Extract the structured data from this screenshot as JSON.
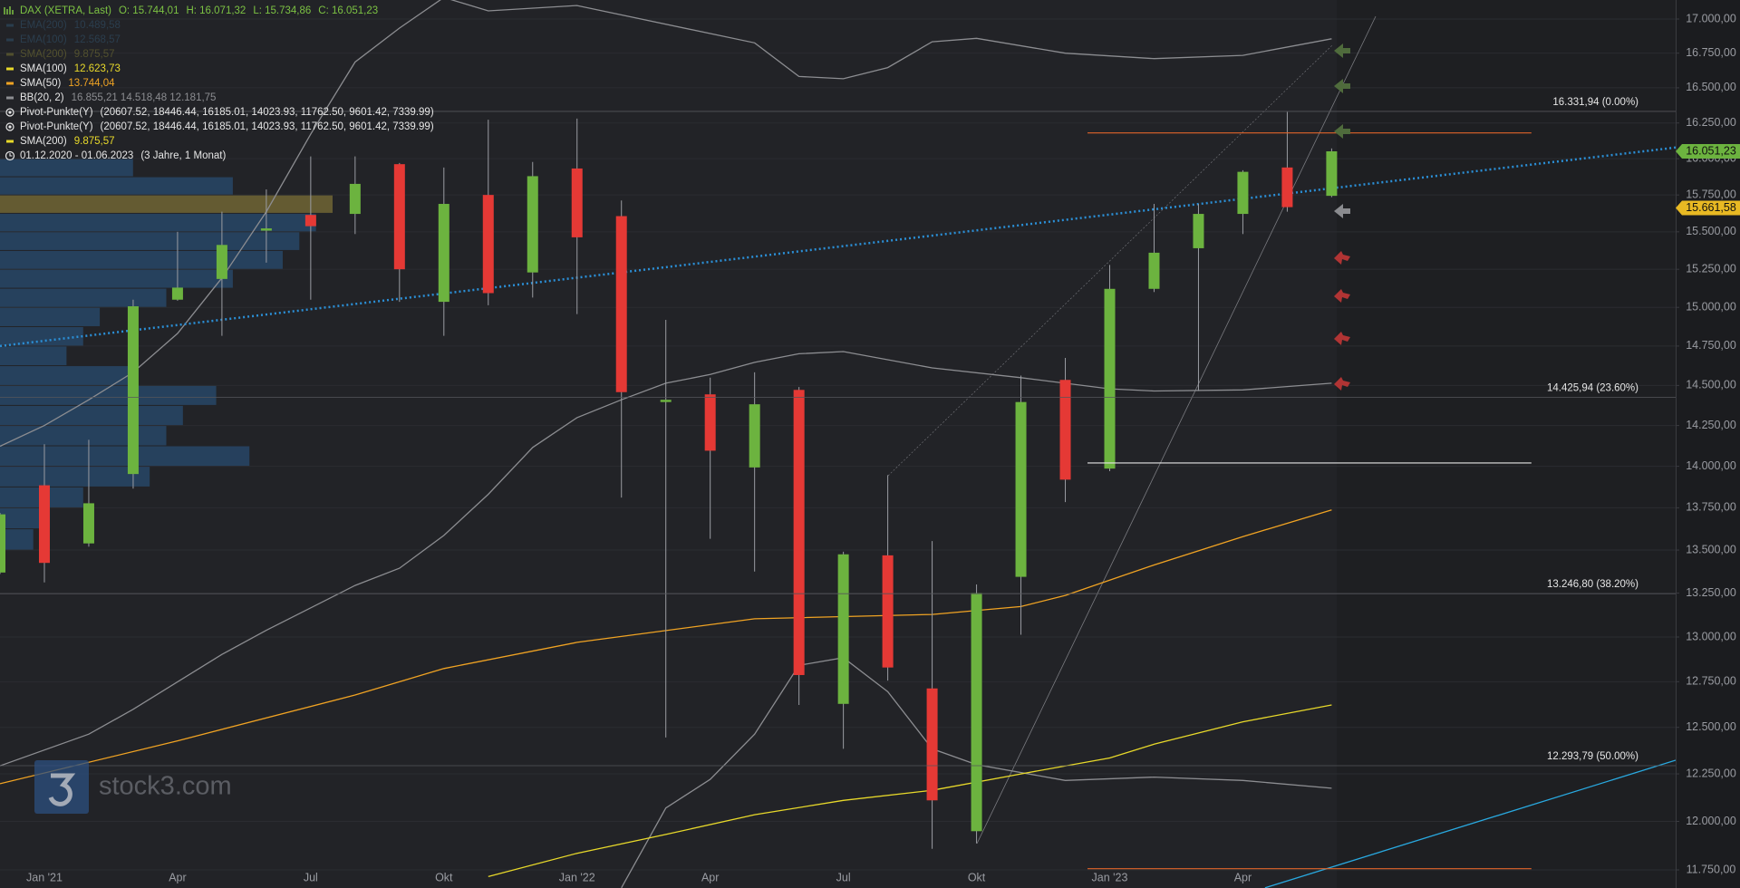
{
  "header": {
    "symbol": "DAX (XETRA, Last)",
    "ohlc": [
      "O: 15.744,01",
      "H: 16.071,32",
      "L: 15.734,86",
      "C: 16.051,23"
    ],
    "color": "#7cc243"
  },
  "legend": [
    {
      "name": "EMA(200)",
      "value": "10.489,58",
      "color": "#3a6f94",
      "icon": "line",
      "dim": true
    },
    {
      "name": "EMA(100)",
      "value": "12.568,57",
      "color": "#3a6f94",
      "icon": "line",
      "dim": true
    },
    {
      "name": "SMA(200)",
      "value": "9.875,57",
      "color": "#a8a23a",
      "icon": "line",
      "dim": true
    },
    {
      "name": "SMA(100)",
      "value": "12.623,73",
      "color": "#e8d92a",
      "icon": "line",
      "dim": false
    },
    {
      "name": "SMA(50)",
      "value": "13.744,04",
      "color": "#f0a323",
      "icon": "line",
      "dim": false
    },
    {
      "name": "BB(20, 2)",
      "value": "16.855,21   14.518,48   12.181,75",
      "color": "#8c8d91",
      "icon": "line",
      "dim": false
    },
    {
      "name": "Pivot-Punkte(Y)",
      "value": "(20607.52,  18446.44,  16185.01,  14023.93,  11762.50,  9601.42,  7339.99)",
      "color": "#e6e6e6",
      "icon": "circle",
      "dim": false
    },
    {
      "name": "Pivot-Punkte(Y)",
      "value": "(20607.52,  18446.44,  16185.01,  14023.93,  11762.50,  9601.42,  7339.99)",
      "color": "#e6e6e6",
      "icon": "circle",
      "dim": false
    },
    {
      "name": "SMA(200)",
      "value": "9.875,57",
      "color": "#e8d92a",
      "icon": "line",
      "dim": false
    },
    {
      "name": "01.12.2020 - 01.06.2023",
      "value": "(3 Jahre, 1 Monat)",
      "color": "#e6e6e6",
      "icon": "clock",
      "dim": false
    }
  ],
  "watermark": "stock3.com",
  "chart_data": {
    "type": "candlestick",
    "categories": [
      null,
      "Jan '21",
      null,
      null,
      "Apr",
      null,
      null,
      "Jul",
      null,
      null,
      "Okt",
      null,
      null,
      "Jan '22",
      null,
      null,
      "Apr",
      null,
      null,
      "Jul",
      null,
      null,
      "Okt",
      null,
      null,
      "Jan '23",
      null,
      null,
      "Apr",
      null,
      null
    ],
    "open": [
      13369,
      13885,
      13539,
      13953,
      15050,
      15186,
      15508,
      15614,
      15621,
      15962,
      15036,
      15750,
      15229,
      15932,
      15606,
      14396,
      14444,
      13993,
      14472,
      12628,
      13469,
      12713,
      11949,
      13344,
      14535,
      13986,
      15121,
      15390,
      15621,
      15939,
      15744.01
    ],
    "high": [
      13720,
      14135,
      14162,
      15050,
      15500,
      15636,
      15788,
      16016,
      16016,
      15970,
      15939,
      16273,
      15977,
      16281,
      15712,
      14919,
      14549,
      14583,
      14490,
      13490,
      13946,
      13553,
      13300,
      14562,
      14674,
      15279,
      15689,
      15689,
      15920,
      16328,
      16071.32
    ],
    "low": [
      13360,
      13312,
      13520,
      13865,
      15043,
      14816,
      15294,
      15050,
      15485,
      15036,
      14816,
      15014,
      15064,
      14956,
      13811,
      12445,
      13566,
      13375,
      12622,
      12384,
      12756,
      11858,
      11886,
      13013,
      13784,
      13970,
      15100,
      14465,
      15485,
      15636,
      15734.86
    ],
    "close": [
      13711,
      13425,
      13777,
      15007,
      15129,
      15412,
      15523,
      15538,
      15826,
      15250,
      15689,
      15093,
      15879,
      15463,
      14458,
      14410,
      14095,
      14382,
      12787,
      13475,
      12829,
      12110,
      13250,
      14396,
      13919,
      15121,
      15360,
      15621,
      15909,
      15667,
      16051.23
    ],
    "up_color": "#6cb33f",
    "down_color": "#e53935",
    "xlim": [
      0,
      37.75
    ],
    "ylim": [
      11750,
      17000
    ],
    "log_scale": true,
    "grid": true,
    "yticks": [
      {
        "value": 17000,
        "label": "17.000,00"
      },
      {
        "value": 16750,
        "label": "16.750,00"
      },
      {
        "value": 16500,
        "label": "16.500,00"
      },
      {
        "value": 16250,
        "label": "16.250,00"
      },
      {
        "value": 16000,
        "label": "16.000,00"
      },
      {
        "value": 15750,
        "label": "15.750,00"
      },
      {
        "value": 15500,
        "label": "15.500,00"
      },
      {
        "value": 15250,
        "label": "15.250,00"
      },
      {
        "value": 15000,
        "label": "15.000,00"
      },
      {
        "value": 14750,
        "label": "14.750,00"
      },
      {
        "value": 14500,
        "label": "14.500,00"
      },
      {
        "value": 14250,
        "label": "14.250,00"
      },
      {
        "value": 14000,
        "label": "14.000,00"
      },
      {
        "value": 13750,
        "label": "13.750,00"
      },
      {
        "value": 13500,
        "label": "13.500,00"
      },
      {
        "value": 13250,
        "label": "13.250,00"
      },
      {
        "value": 13000,
        "label": "13.000,00"
      },
      {
        "value": 12750,
        "label": "12.750,00"
      },
      {
        "value": 12500,
        "label": "12.500,00"
      },
      {
        "value": 12250,
        "label": "12.250,00"
      },
      {
        "value": 12000,
        "label": "12.000,00"
      },
      {
        "value": 11750,
        "label": "11.750,00"
      }
    ],
    "overlays": [
      {
        "color": "#8c8d91",
        "style": "solid",
        "x": [
          0,
          1,
          2,
          3,
          4,
          5,
          6,
          7,
          8,
          9,
          10,
          11,
          13,
          17,
          18,
          19,
          20,
          21,
          22,
          24,
          26,
          28,
          30
        ],
        "values": [
          14122,
          14250,
          14410,
          14583,
          14831,
          15193,
          15636,
          16172,
          16685,
          16933,
          17160,
          17060,
          17100,
          16825,
          16581,
          16565,
          16645,
          16833,
          16858,
          16750,
          16710,
          16734,
          16855
        ]
      },
      {
        "color": "#8c8d91",
        "style": "solid",
        "x": [
          0,
          2,
          3,
          5,
          6,
          8,
          9,
          10,
          11,
          12,
          13,
          14,
          15,
          16,
          17,
          18,
          19,
          21,
          23,
          25,
          26,
          28,
          30
        ],
        "values": [
          12293,
          12463,
          12598,
          12902,
          13038,
          13294,
          13394,
          13586,
          13831,
          14115,
          14299,
          14410,
          14514,
          14569,
          14646,
          14701,
          14715,
          14611,
          14549,
          14479,
          14465,
          14472,
          14514
        ]
      },
      {
        "color": "#8c8d91",
        "style": "solid",
        "x": [
          14,
          15,
          16,
          17,
          18,
          19,
          20,
          21,
          22,
          24,
          26,
          28,
          30
        ],
        "values": [
          11659,
          12070,
          12221,
          12463,
          12841,
          12884,
          12695,
          12384,
          12299,
          12215,
          12233,
          12215,
          12174
        ]
      },
      {
        "color": "#f0a323",
        "style": "solid",
        "x": [
          0,
          4,
          8,
          10,
          13,
          17,
          21,
          23,
          24,
          25,
          26,
          28,
          30
        ],
        "values": [
          12198,
          12427,
          12677,
          12823,
          12970,
          13103,
          13128,
          13173,
          13237,
          13325,
          13413,
          13579,
          13737
        ]
      },
      {
        "color": "#e8d92a",
        "style": "solid",
        "x": [
          11,
          13,
          15,
          17,
          19,
          21,
          23,
          25,
          26,
          28,
          30
        ],
        "values": [
          11716,
          11835,
          11932,
          12035,
          12110,
          12163,
          12250,
          12335,
          12409,
          12530,
          12622
        ]
      },
      {
        "color": "#2b8fd6",
        "style": "dotted",
        "x": [
          0,
          37.75
        ],
        "values": [
          14750,
          16078
        ]
      },
      {
        "color": "#29a9e0",
        "style": "solid",
        "x": [
          28.5,
          37.75
        ],
        "values": [
          11659,
          12323
        ]
      }
    ],
    "levels": [
      {
        "color": "#e0642a",
        "x": [
          24.5,
          34.5
        ],
        "value": 16180
      },
      {
        "color": "#e6e6e6",
        "x": [
          24.5,
          34.5
        ],
        "value": 14020
      },
      {
        "color": "#e0642a",
        "x": [
          24.5,
          34.5
        ],
        "value": 11756
      }
    ],
    "fib_levels": [
      {
        "value": 16331.94,
        "label": "16.331,94 (0.00%)"
      },
      {
        "value": 14425.94,
        "label": "14.425,94 (23.60%)"
      },
      {
        "value": 13246.8,
        "label": "13.246,80 (38.20%)"
      },
      {
        "value": 12293.79,
        "label": "12.293,79 (50.00%)"
      }
    ],
    "price_markers": [
      {
        "value": 16051.23,
        "label": "16.051,23",
        "color": "#6cb33f"
      },
      {
        "value": 15661.58,
        "label": "15.661,58",
        "color": "#e8b923"
      }
    ],
    "volume_profile": {
      "bins": [
        13500,
        13625,
        13750,
        13875,
        14000,
        14125,
        14250,
        14375,
        14500,
        14625,
        14750,
        14875,
        15000,
        15125,
        15250,
        15375,
        15500,
        15625,
        15750,
        15875,
        16000
      ],
      "counts": [
        10,
        15,
        25,
        45,
        75,
        50,
        55,
        65,
        40,
        20,
        25,
        30,
        50,
        70,
        85,
        90,
        95,
        100,
        70,
        40
      ],
      "color": "#2a5a8a",
      "poc_color": "#9a8a3c"
    }
  }
}
